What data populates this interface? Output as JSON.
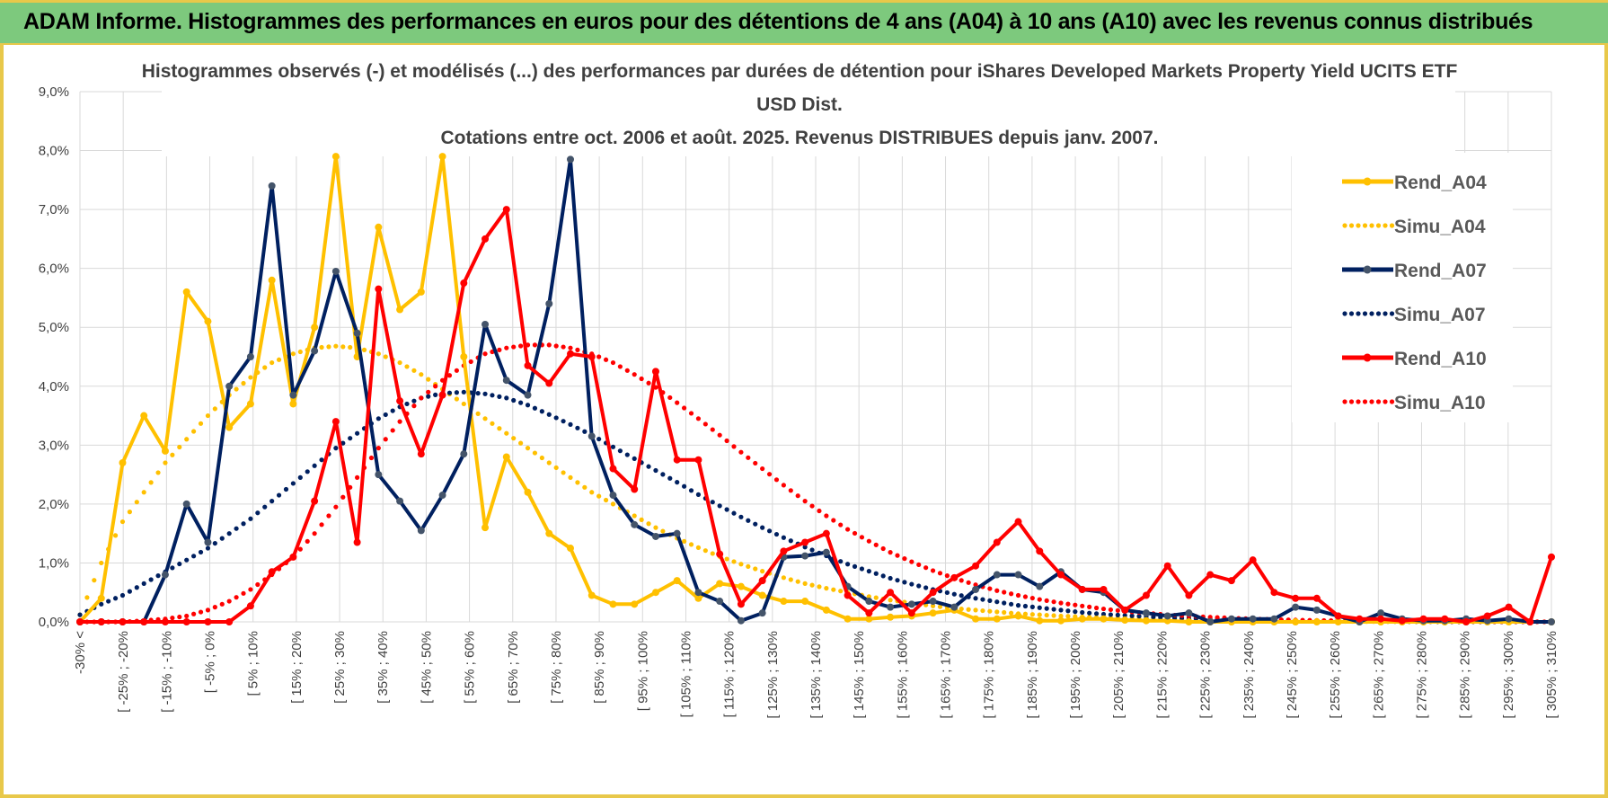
{
  "header": {
    "title": "ADAM Informe. Histogrammes des performances en euros pour des détentions de 4 ans (A04) à 10 ans (A10) avec les revenus connus distribués"
  },
  "colors": {
    "banner": "#7dc97d",
    "border": "#e8c84a",
    "A04": "#ffc000",
    "A07": "#002060",
    "A10": "#ff0000"
  },
  "chart_data": {
    "type": "line",
    "title_lines": [
      "Histogrammes observés (-) et modélisés (...) des performances par durées de détention pour iShares Developed Markets Property Yield UCITS ETF",
      "USD Dist.",
      "Cotations entre oct. 2006 et août. 2025. Revenus DISTRIBUES depuis janv. 2007."
    ],
    "ylim": [
      0,
      9
    ],
    "yticks": [
      "0,0%",
      "1,0%",
      "2,0%",
      "3,0%",
      "4,0%",
      "5,0%",
      "6,0%",
      "7,0%",
      "8,0%",
      "9,0%"
    ],
    "xtick_labels": [
      "-30% <",
      "[ -25% ; -20%",
      "[ -15% ; -10%",
      "[ -5% ; 0%",
      "[ 5% ; 10%",
      "[ 15% ; 20%",
      "[ 25% ; 30%",
      "[ 35% ; 40%",
      "[ 45% ; 50%",
      "[ 55% ; 60%",
      "[ 65% ; 70%",
      "[ 75% ; 80%",
      "[ 85% ; 90%",
      "[ 95% ; 100%",
      "[ 105% ; 110%",
      "[ 115% ; 120%",
      "[ 125% ; 130%",
      "[ 135% ; 140%",
      "[ 145% ; 150%",
      "[ 155% ; 160%",
      "[ 165% ; 170%",
      "[ 175% ; 180%",
      "[ 185% ; 190%",
      "[ 195% ; 200%",
      "[ 205% ; 210%",
      "[ 215% ; 220%",
      "[ 225% ; 230%",
      "[ 235% ; 240%",
      "[ 245% ; 250%",
      "[ 255% ; 260%",
      "[ 265% ; 270%",
      "[ 275% ; 280%",
      "[ 285% ; 290%",
      "[ 295% ; 300%",
      "[ 305% ; 310%"
    ],
    "n_points": 70,
    "legend_position": "top-right",
    "series": [
      {
        "name": "Rend_A04",
        "style": "solid",
        "color": "#ffc000",
        "values": [
          0.0,
          0.4,
          2.7,
          3.5,
          2.9,
          5.6,
          5.1,
          3.3,
          3.7,
          5.8,
          3.7,
          5.0,
          7.9,
          4.5,
          6.7,
          5.3,
          5.6,
          7.9,
          4.5,
          1.6,
          2.8,
          2.2,
          1.5,
          1.25,
          0.45,
          0.3,
          0.3,
          0.5,
          0.7,
          0.4,
          0.65,
          0.6,
          0.45,
          0.35,
          0.35,
          0.2,
          0.05,
          0.05,
          0.08,
          0.1,
          0.15,
          0.2,
          0.05,
          0.05,
          0.1,
          0.02,
          0.02,
          0.05,
          0.05,
          0.03,
          0.02,
          0.02,
          0.0,
          0.0,
          0.0,
          0.0,
          0.0,
          0.0,
          0.0,
          0.0,
          0.0,
          0.0,
          0.0,
          0.0,
          0.0,
          0.0,
          0.0,
          0.0,
          0.0,
          0.0
        ]
      },
      {
        "name": "Simu_A04",
        "style": "dotted",
        "color": "#ffc000",
        "values": [
          0.12,
          1.0,
          1.7,
          2.2,
          2.7,
          3.1,
          3.5,
          3.85,
          4.15,
          4.4,
          4.55,
          4.65,
          4.68,
          4.65,
          4.55,
          4.4,
          4.2,
          3.95,
          3.7,
          3.45,
          3.2,
          2.95,
          2.7,
          2.45,
          2.2,
          2.0,
          1.8,
          1.6,
          1.42,
          1.26,
          1.11,
          0.98,
          0.86,
          0.75,
          0.65,
          0.57,
          0.5,
          0.43,
          0.37,
          0.32,
          0.27,
          0.23,
          0.2,
          0.17,
          0.14,
          0.12,
          0.1,
          0.085,
          0.07,
          0.06,
          0.05,
          0.04,
          0.035,
          0.03,
          0.025,
          0.02,
          0.015,
          0.012,
          0.01,
          0.008,
          0.006,
          0.005,
          0.004,
          0.003,
          0.002,
          0.002,
          0.001,
          0.001,
          0.001,
          0.0
        ]
      },
      {
        "name": "Rend_A07",
        "style": "solid",
        "color": "#002060",
        "values": [
          0.0,
          0.0,
          0.0,
          0.0,
          0.8,
          2.0,
          1.35,
          4.0,
          4.5,
          7.4,
          3.85,
          4.6,
          5.95,
          4.9,
          2.5,
          2.05,
          1.55,
          2.15,
          2.85,
          5.05,
          4.1,
          3.85,
          5.4,
          7.85,
          3.15,
          2.15,
          1.65,
          1.45,
          1.5,
          0.5,
          0.35,
          0.02,
          0.15,
          1.1,
          1.12,
          1.18,
          0.6,
          0.35,
          0.25,
          0.3,
          0.35,
          0.25,
          0.55,
          0.8,
          0.8,
          0.6,
          0.85,
          0.55,
          0.5,
          0.2,
          0.15,
          0.1,
          0.15,
          0.0,
          0.05,
          0.05,
          0.05,
          0.25,
          0.2,
          0.1,
          0.0,
          0.15,
          0.05,
          0.02,
          0.02,
          0.05,
          0.02,
          0.05,
          0.0,
          0.0
        ]
      },
      {
        "name": "Simu_A07",
        "style": "dotted",
        "color": "#002060",
        "values": [
          0.12,
          0.3,
          0.45,
          0.65,
          0.85,
          1.05,
          1.25,
          1.5,
          1.75,
          2.05,
          2.35,
          2.65,
          2.95,
          3.2,
          3.45,
          3.65,
          3.8,
          3.88,
          3.9,
          3.87,
          3.8,
          3.68,
          3.52,
          3.35,
          3.17,
          2.97,
          2.77,
          2.57,
          2.37,
          2.16,
          1.97,
          1.78,
          1.6,
          1.43,
          1.27,
          1.12,
          0.98,
          0.86,
          0.74,
          0.64,
          0.55,
          0.47,
          0.4,
          0.34,
          0.28,
          0.24,
          0.2,
          0.16,
          0.13,
          0.11,
          0.09,
          0.07,
          0.06,
          0.05,
          0.04,
          0.03,
          0.025,
          0.02,
          0.015,
          0.012,
          0.01,
          0.008,
          0.006,
          0.005,
          0.004,
          0.003,
          0.002,
          0.002,
          0.001,
          0.001
        ]
      },
      {
        "name": "Rend_A10",
        "style": "solid",
        "color": "#ff0000",
        "values": [
          0.0,
          0.0,
          0.0,
          0.0,
          0.0,
          0.0,
          0.0,
          0.0,
          0.27,
          0.85,
          1.1,
          2.05,
          3.4,
          1.35,
          5.65,
          3.75,
          2.85,
          3.85,
          5.75,
          6.5,
          7.0,
          4.35,
          4.05,
          4.55,
          4.5,
          2.6,
          2.25,
          4.25,
          2.75,
          2.75,
          1.15,
          0.3,
          0.7,
          1.2,
          1.35,
          1.5,
          0.45,
          0.15,
          0.5,
          0.15,
          0.5,
          0.75,
          0.95,
          1.35,
          1.7,
          1.2,
          0.8,
          0.55,
          0.55,
          0.2,
          0.45,
          0.95,
          0.45,
          0.8,
          0.7,
          1.05,
          0.5,
          0.4,
          0.4,
          0.1,
          0.05,
          0.05,
          0.02,
          0.05,
          0.05,
          0.0,
          0.1,
          0.25,
          0.0,
          1.1
        ]
      },
      {
        "name": "Simu_A10",
        "style": "dotted",
        "color": "#ff0000",
        "values": [
          0.0,
          0.0,
          0.0,
          0.02,
          0.05,
          0.1,
          0.2,
          0.35,
          0.55,
          0.8,
          1.1,
          1.5,
          1.95,
          2.45,
          2.95,
          3.4,
          3.8,
          4.1,
          4.35,
          4.55,
          4.65,
          4.7,
          4.7,
          4.65,
          4.55,
          4.4,
          4.2,
          3.98,
          3.72,
          3.45,
          3.17,
          2.88,
          2.6,
          2.32,
          2.05,
          1.8,
          1.57,
          1.37,
          1.18,
          1.02,
          0.87,
          0.74,
          0.63,
          0.53,
          0.45,
          0.38,
          0.32,
          0.27,
          0.22,
          0.18,
          0.15,
          0.12,
          0.1,
          0.08,
          0.065,
          0.05,
          0.04,
          0.032,
          0.025,
          0.02,
          0.015,
          0.012,
          0.01,
          0.008,
          0.006,
          0.005,
          0.004,
          0.003,
          0.002,
          0.001
        ]
      }
    ]
  }
}
